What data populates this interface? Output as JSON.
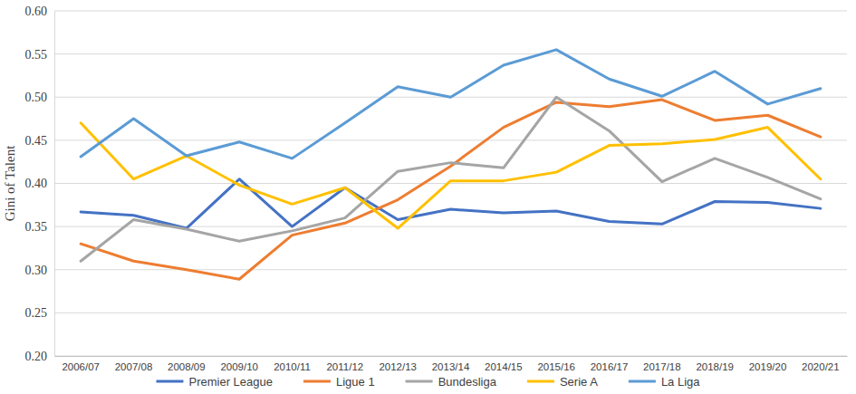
{
  "chart_data": {
    "type": "line",
    "y_label": "Gini of Talent",
    "categories": [
      "2006/07",
      "2007/08",
      "2008/09",
      "2009/10",
      "2010/11",
      "2011/12",
      "2012/13",
      "2013/14",
      "2014/15",
      "2015/16",
      "2016/17",
      "2017/18",
      "2018/19",
      "2019/20",
      "2020/21"
    ],
    "series": [
      {
        "name": "Premier League",
        "color": "#4472c4",
        "values": [
          0.367,
          0.363,
          0.348,
          0.405,
          0.35,
          0.395,
          0.358,
          0.37,
          0.366,
          0.368,
          0.356,
          0.353,
          0.379,
          0.378,
          0.371
        ]
      },
      {
        "name": "Ligue 1",
        "color": "#ed7d31",
        "values": [
          0.33,
          0.31,
          0.3,
          0.289,
          0.34,
          0.354,
          0.381,
          0.42,
          0.465,
          0.494,
          0.489,
          0.497,
          0.473,
          0.479,
          0.454
        ]
      },
      {
        "name": "Bundesliga",
        "color": "#a5a5a5",
        "values": [
          0.31,
          0.358,
          0.347,
          0.333,
          0.345,
          0.36,
          0.414,
          0.424,
          0.418,
          0.5,
          0.461,
          0.402,
          0.429,
          0.407,
          0.382
        ]
      },
      {
        "name": "Serie A",
        "color": "#ffc000",
        "values": [
          0.47,
          0.405,
          0.432,
          0.398,
          0.376,
          0.395,
          0.348,
          0.403,
          0.403,
          0.413,
          0.444,
          0.446,
          0.451,
          0.465,
          0.405
        ]
      },
      {
        "name": "La Liga",
        "color": "#5b9bd5",
        "values": [
          0.431,
          0.475,
          0.432,
          0.448,
          0.429,
          0.47,
          0.512,
          0.5,
          0.537,
          0.555,
          0.521,
          0.501,
          0.53,
          0.492,
          0.51
        ]
      }
    ],
    "ylim": [
      0.2,
      0.6
    ],
    "yticks": [
      {
        "value": 0.2,
        "label": "0.20"
      },
      0.25,
      {
        "value": 0.3,
        "label": "0.30"
      },
      0.35,
      {
        "value": 0.4,
        "label": "0.40"
      },
      0.45,
      {
        "value": 0.5,
        "label": "0.50"
      },
      0.55,
      {
        "value": 0.6,
        "label": "0.60"
      }
    ],
    "grid": true,
    "legend": "bottom"
  }
}
